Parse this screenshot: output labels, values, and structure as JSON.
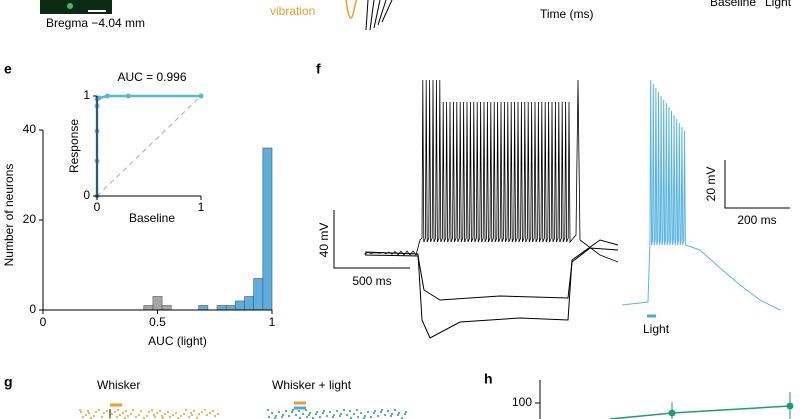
{
  "top_strip": {
    "bregma": "Bregma −4.04 mm",
    "stimulus": "vibration",
    "time_label": "Time (ms)",
    "baseline": "Baseline",
    "light": "Light"
  },
  "panel_labels": {
    "e": "e",
    "f": "f",
    "g": "g",
    "h": "h"
  },
  "panel_f": {
    "left_scale_v": "40 mV",
    "left_scale_t": "500 ms",
    "right_scale_v": "20 mV",
    "right_scale_t": "200 ms",
    "light": "Light"
  },
  "panel_g": {
    "whisker": "Whisker",
    "whisker_light": "Whisker + light"
  },
  "panel_h": {
    "ytick": "100"
  },
  "chart_data": [
    {
      "type": "histogram",
      "xlabel": "AUC (light)",
      "ylabel": "Number of neurons",
      "bins": [
        0.44,
        0.48,
        0.52,
        0.56,
        0.6,
        0.64,
        0.68,
        0.72,
        0.76,
        0.8,
        0.84,
        0.88,
        0.92,
        0.96,
        1.0
      ],
      "values": [
        1,
        3,
        1,
        0,
        0,
        0,
        1,
        0,
        1,
        1,
        2,
        3,
        7,
        36
      ],
      "colors": [
        "#a6a6a6",
        "#a6a6a6",
        "#a6a6a6",
        "#5aaee0",
        "#5aaee0",
        "#5aaee0",
        "#5aaee0",
        "#5aaee0",
        "#5aaee0",
        "#5aaee0",
        "#5aaee0",
        "#5aaee0",
        "#5aaee0",
        "#5aaee0"
      ],
      "xlim": [
        0,
        1
      ],
      "ylim": [
        0,
        40
      ],
      "xticks": [
        0,
        0.5,
        1
      ],
      "yticks": [
        0,
        20,
        40
      ]
    },
    {
      "type": "line",
      "title": "AUC = 0.996",
      "xlabel": "Baseline",
      "ylabel": "Response",
      "x": [
        0,
        0,
        0,
        0,
        0,
        0.02,
        0.1,
        0.3,
        1
      ],
      "values": [
        0,
        0.35,
        0.65,
        0.9,
        0.97,
        0.98,
        1,
        1,
        1
      ],
      "color": "#5ab4e0",
      "xlim": [
        0,
        1
      ],
      "ylim": [
        0,
        1
      ],
      "xticks": [
        0,
        1
      ],
      "yticks": [
        0,
        1
      ]
    }
  ]
}
